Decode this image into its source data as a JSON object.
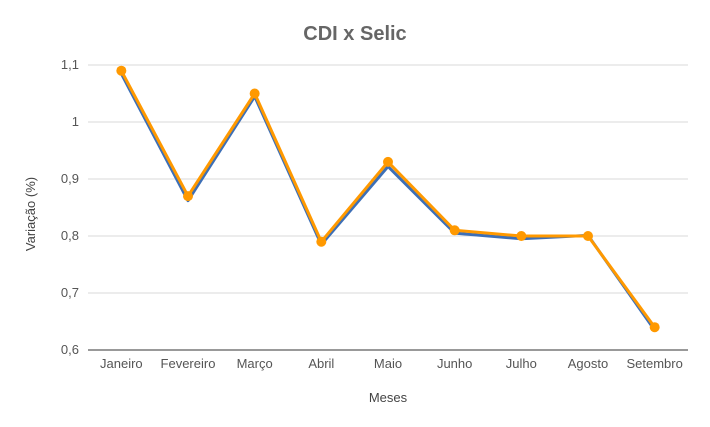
{
  "chart_data": {
    "type": "line",
    "title": "CDI x Selic",
    "xlabel": "Meses",
    "ylabel": "Variação (%)",
    "categories": [
      "Janeiro",
      "Fevereiro",
      "Março",
      "Abril",
      "Maio",
      "Junho",
      "Julho",
      "Agosto",
      "Setembro"
    ],
    "ylim": [
      0.6,
      1.1
    ],
    "yticks": [
      "0,6",
      "0,7",
      "0,8",
      "0,9",
      "1",
      "1,1"
    ],
    "ytick_values": [
      0.6,
      0.7,
      0.8,
      0.9,
      1.0,
      1.1
    ],
    "grid": true,
    "legend": "none",
    "series": [
      {
        "color": "#3d6fb6",
        "markers": false,
        "values": [
          1.085,
          0.862,
          1.045,
          0.785,
          0.922,
          0.805,
          0.795,
          0.801,
          0.635
        ]
      },
      {
        "color": "#ff9900",
        "markers": true,
        "values": [
          1.09,
          0.87,
          1.05,
          0.79,
          0.93,
          0.81,
          0.8,
          0.8,
          0.64
        ]
      }
    ]
  }
}
